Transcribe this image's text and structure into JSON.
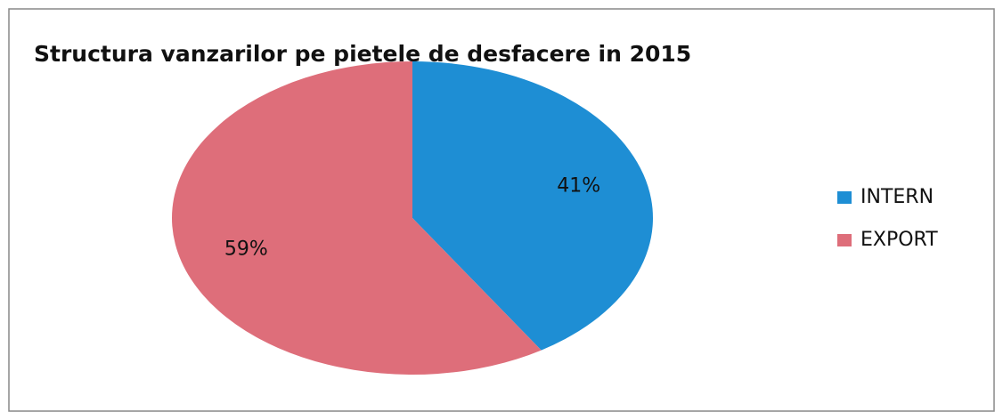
{
  "chart_data": {
    "type": "pie",
    "title": "Structura vanzarilor pe pietele de desfacere in 2015",
    "categories": [
      "INTERN",
      "EXPORT"
    ],
    "values": [
      41,
      59
    ],
    "value_labels": [
      "41%",
      "59%"
    ],
    "colors": [
      "#1e8ed4",
      "#de6e7a"
    ],
    "legend": "right"
  }
}
